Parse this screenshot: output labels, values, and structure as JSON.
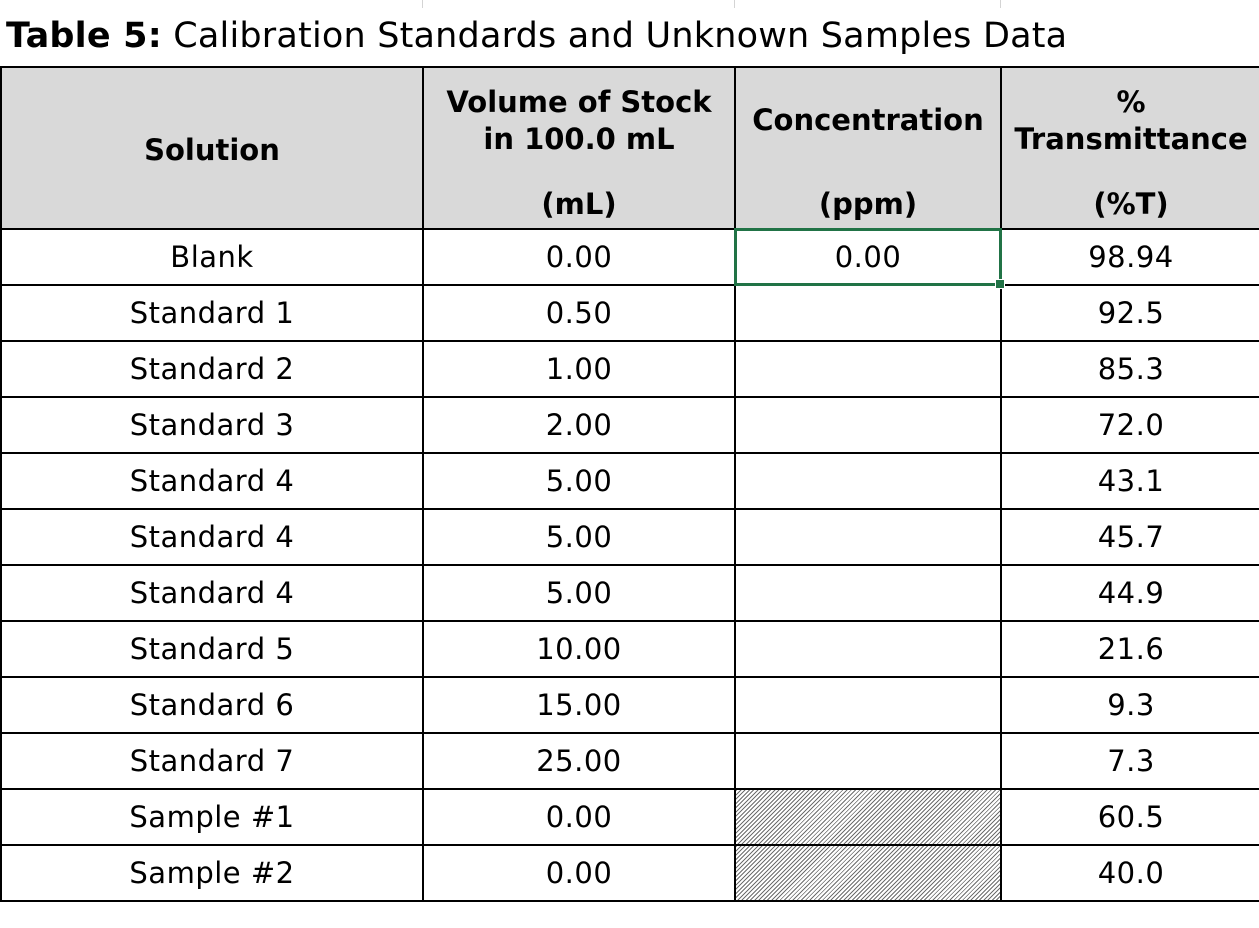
{
  "title": {
    "label": "Table 5:",
    "text": "Calibration Standards and Unknown Samples Data"
  },
  "columns": [
    {
      "name": "Solution",
      "unit": ""
    },
    {
      "name_line1": "Volume of Stock",
      "name_line2": "in 100.0 mL",
      "unit": "(mL)"
    },
    {
      "name": "Concentration",
      "unit": "(ppm)"
    },
    {
      "name_line1": "%",
      "name_line2": "Transmittance",
      "unit": "(%T)"
    }
  ],
  "rows": [
    {
      "solution": "Blank",
      "volume": "0.00",
      "concentration": "0.00",
      "transmittance": "98.94"
    },
    {
      "solution": "Standard 1",
      "volume": "0.50",
      "concentration": "",
      "transmittance": "92.5"
    },
    {
      "solution": "Standard 2",
      "volume": "1.00",
      "concentration": "",
      "transmittance": "85.3"
    },
    {
      "solution": "Standard 3",
      "volume": "2.00",
      "concentration": "",
      "transmittance": "72.0"
    },
    {
      "solution": "Standard 4",
      "volume": "5.00",
      "concentration": "",
      "transmittance": "43.1"
    },
    {
      "solution": "Standard 4",
      "volume": "5.00",
      "concentration": "",
      "transmittance": "45.7"
    },
    {
      "solution": "Standard 4",
      "volume": "5.00",
      "concentration": "",
      "transmittance": "44.9"
    },
    {
      "solution": "Standard 5",
      "volume": "10.00",
      "concentration": "",
      "transmittance": "21.6"
    },
    {
      "solution": "Standard 6",
      "volume": "15.00",
      "concentration": "",
      "transmittance": "9.3"
    },
    {
      "solution": "Standard 7",
      "volume": "25.00",
      "concentration": "",
      "transmittance": "7.3"
    },
    {
      "solution": "Sample #1",
      "volume": "0.00",
      "concentration": "",
      "transmittance": "60.5",
      "concentration_hatched": true
    },
    {
      "solution": "Sample #2",
      "volume": "0.00",
      "concentration": "",
      "transmittance": "40.0",
      "concentration_hatched": true
    }
  ],
  "selection": {
    "row": 0,
    "column": "concentration",
    "border_color": "#217346"
  },
  "colors": {
    "header_fill": "#d9d9d9",
    "grid": "#000000"
  }
}
